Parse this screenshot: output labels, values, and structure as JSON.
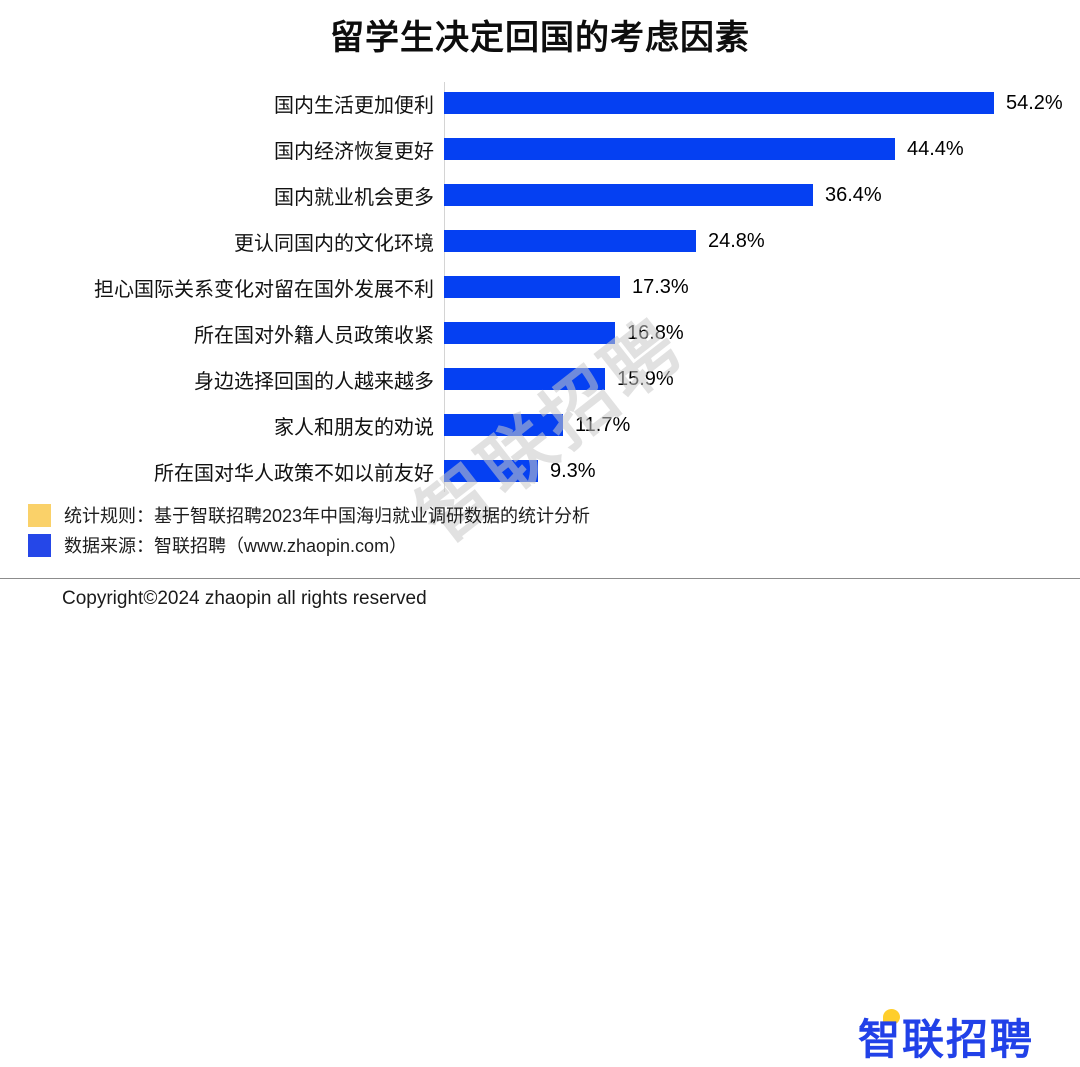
{
  "title": "留学生决定回国的考虑因素",
  "chart_data": {
    "type": "bar",
    "orientation": "horizontal",
    "title": "留学生决定回国的考虑因素",
    "categories": [
      "国内生活更加便利",
      "国内经济恢复更好",
      "国内就业机会更多",
      "更认同国内的文化环境",
      "担心国际关系变化对留在国外发展不利",
      "所在国对外籍人员政策收紧",
      "身边选择回国的人越来越多",
      "家人和朋友的劝说",
      "所在国对华人政策不如以前友好"
    ],
    "values": [
      54.2,
      44.4,
      36.4,
      24.8,
      17.3,
      16.8,
      15.9,
      11.7,
      9.3
    ],
    "value_labels": [
      "54.2%",
      "44.4%",
      "36.4%",
      "24.8%",
      "17.3%",
      "16.8%",
      "15.9%",
      "11.7%",
      "9.3%"
    ],
    "unit": "%",
    "xlim": [
      0,
      60
    ],
    "grid": false,
    "legend_position": "bottom-left",
    "value_label_position": "right-of-bar",
    "bar_color": "#0540f2"
  },
  "watermark": {
    "text": "智联招聘"
  },
  "legend": {
    "items": [
      {
        "swatch": "yellow-square",
        "color": "#fad169",
        "label": "统计规则：基于智联招聘2023年中国海归就业调研数据的统计分析"
      },
      {
        "swatch": "blue-square",
        "color": "#2547e8",
        "label": "数据来源：智联招聘（www.zhaopin.com）"
      }
    ]
  },
  "logo": {
    "text": "智联招聘",
    "color": "#2141e8",
    "accent_color": "#ffce2b"
  },
  "footer": {
    "copyright": "Copyright©2024 zhaopin all rights reserved"
  }
}
